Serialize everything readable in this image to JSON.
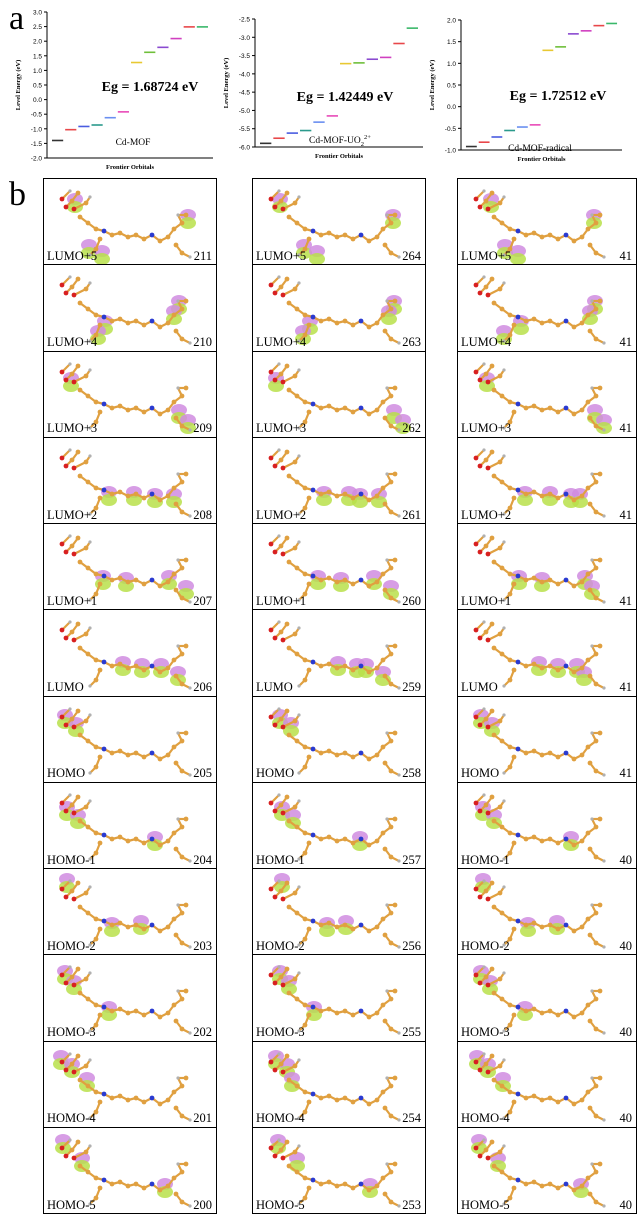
{
  "panel_labels": {
    "a": "a",
    "b": "b"
  },
  "chart_data": [
    {
      "type": "scatter",
      "title": "Cd-MOF",
      "annotation": "Eg = 1.68724 eV",
      "xlabel": "Frontier Orbitals",
      "ylabel": "Level Energy (eV)",
      "ylim": [
        -2.0,
        3.0
      ],
      "yticks": [
        "3.0",
        "2.5",
        "2.0",
        "1.5",
        "1.0",
        "0.5",
        "0.0",
        "-0.5",
        "-1.0",
        "-1.5",
        "-2.0"
      ],
      "x": [
        1,
        2,
        3,
        4,
        5,
        6,
        7,
        8,
        9,
        10,
        11,
        12
      ],
      "values": [
        -1.4,
        -1.03,
        -0.92,
        -0.87,
        -0.62,
        -0.42,
        1.27,
        1.62,
        1.79,
        2.09,
        2.49,
        2.49
      ],
      "colors": [
        "#333333",
        "#e8474a",
        "#4a5ce0",
        "#2b9a8c",
        "#6a8ff0",
        "#e84ab8",
        "#e8c832",
        "#6fbf3a",
        "#8a4ad0",
        "#d040c0",
        "#e8474a",
        "#3ab86a"
      ]
    },
    {
      "type": "scatter",
      "title": "Cd-MOF-UO",
      "title_sub": "2",
      "title_sup": "2+",
      "annotation": "Eg = 1.42449 eV",
      "xlabel": "Frontier Orbitals",
      "ylabel": "Level Energy (eV)",
      "ylim": [
        -6.0,
        -2.5
      ],
      "yticks": [
        "-2.5",
        "-3.0",
        "-3.5",
        "-4.0",
        "-4.5",
        "-5.0",
        "-5.5",
        "-6.0"
      ],
      "x": [
        1,
        2,
        3,
        4,
        5,
        6,
        7,
        8,
        9,
        10,
        11,
        12
      ],
      "values": [
        -5.9,
        -5.76,
        -5.62,
        -5.55,
        -5.32,
        -5.15,
        -3.72,
        -3.7,
        -3.6,
        -3.55,
        -3.17,
        -2.75
      ],
      "colors": [
        "#333333",
        "#e8474a",
        "#4a5ce0",
        "#2b9a8c",
        "#6a8ff0",
        "#e84ab8",
        "#e8c832",
        "#6fbf3a",
        "#8a4ad0",
        "#d040c0",
        "#e8474a",
        "#3ab86a"
      ]
    },
    {
      "type": "scatter",
      "title": "Cd-MOF-radical",
      "annotation": "Eg = 1.72512 eV",
      "xlabel": "Frontier Orbitals",
      "ylabel": "Level Energy (eV)",
      "ylim": [
        -1.0,
        2.0
      ],
      "yticks": [
        "2.0",
        "1.5",
        "1.0",
        "0.5",
        "0.0",
        "-0.5",
        "-1.0"
      ],
      "x": [
        1,
        2,
        3,
        4,
        5,
        6,
        7,
        8,
        9,
        10,
        11,
        12
      ],
      "values": [
        -0.92,
        -0.82,
        -0.7,
        -0.55,
        -0.47,
        -0.42,
        1.3,
        1.38,
        1.68,
        1.75,
        1.87,
        1.92
      ],
      "colors": [
        "#333333",
        "#e8474a",
        "#4a5ce0",
        "#2b9a8c",
        "#6a8ff0",
        "#e84ab8",
        "#e8c832",
        "#6fbf3a",
        "#8a4ad0",
        "#d040c0",
        "#e8474a",
        "#3ab86a"
      ]
    }
  ],
  "orbital_labels": [
    "LUMO+5",
    "LUMO+4",
    "LUMO+3",
    "LUMO+2",
    "LUMO+1",
    "LUMO",
    "HOMO",
    "HOMO-1",
    "HOMO-2",
    "HOMO-3",
    "HOMO-4",
    "HOMO-5"
  ],
  "orbital_columns": [
    {
      "numbers": [
        "211",
        "210",
        "209",
        "208",
        "207",
        "206",
        "205",
        "204",
        "203",
        "202",
        "201",
        "200"
      ]
    },
    {
      "numbers": [
        "264",
        "263",
        "262",
        "261",
        "260",
        "259",
        "258",
        "257",
        "256",
        "255",
        "254",
        "253"
      ]
    },
    {
      "numbers": [
        "41",
        "41",
        "41",
        "41",
        "41",
        "41",
        "41",
        "40",
        "40",
        "40",
        "40",
        "40"
      ]
    }
  ],
  "colors": {
    "lobe_green": "#b8e04a",
    "lobe_purple": "#d08ce0",
    "atom_c": "#e0a040",
    "atom_n": "#2a3ad0",
    "atom_o": "#d82020",
    "atom_h": "#b0b0b0"
  }
}
